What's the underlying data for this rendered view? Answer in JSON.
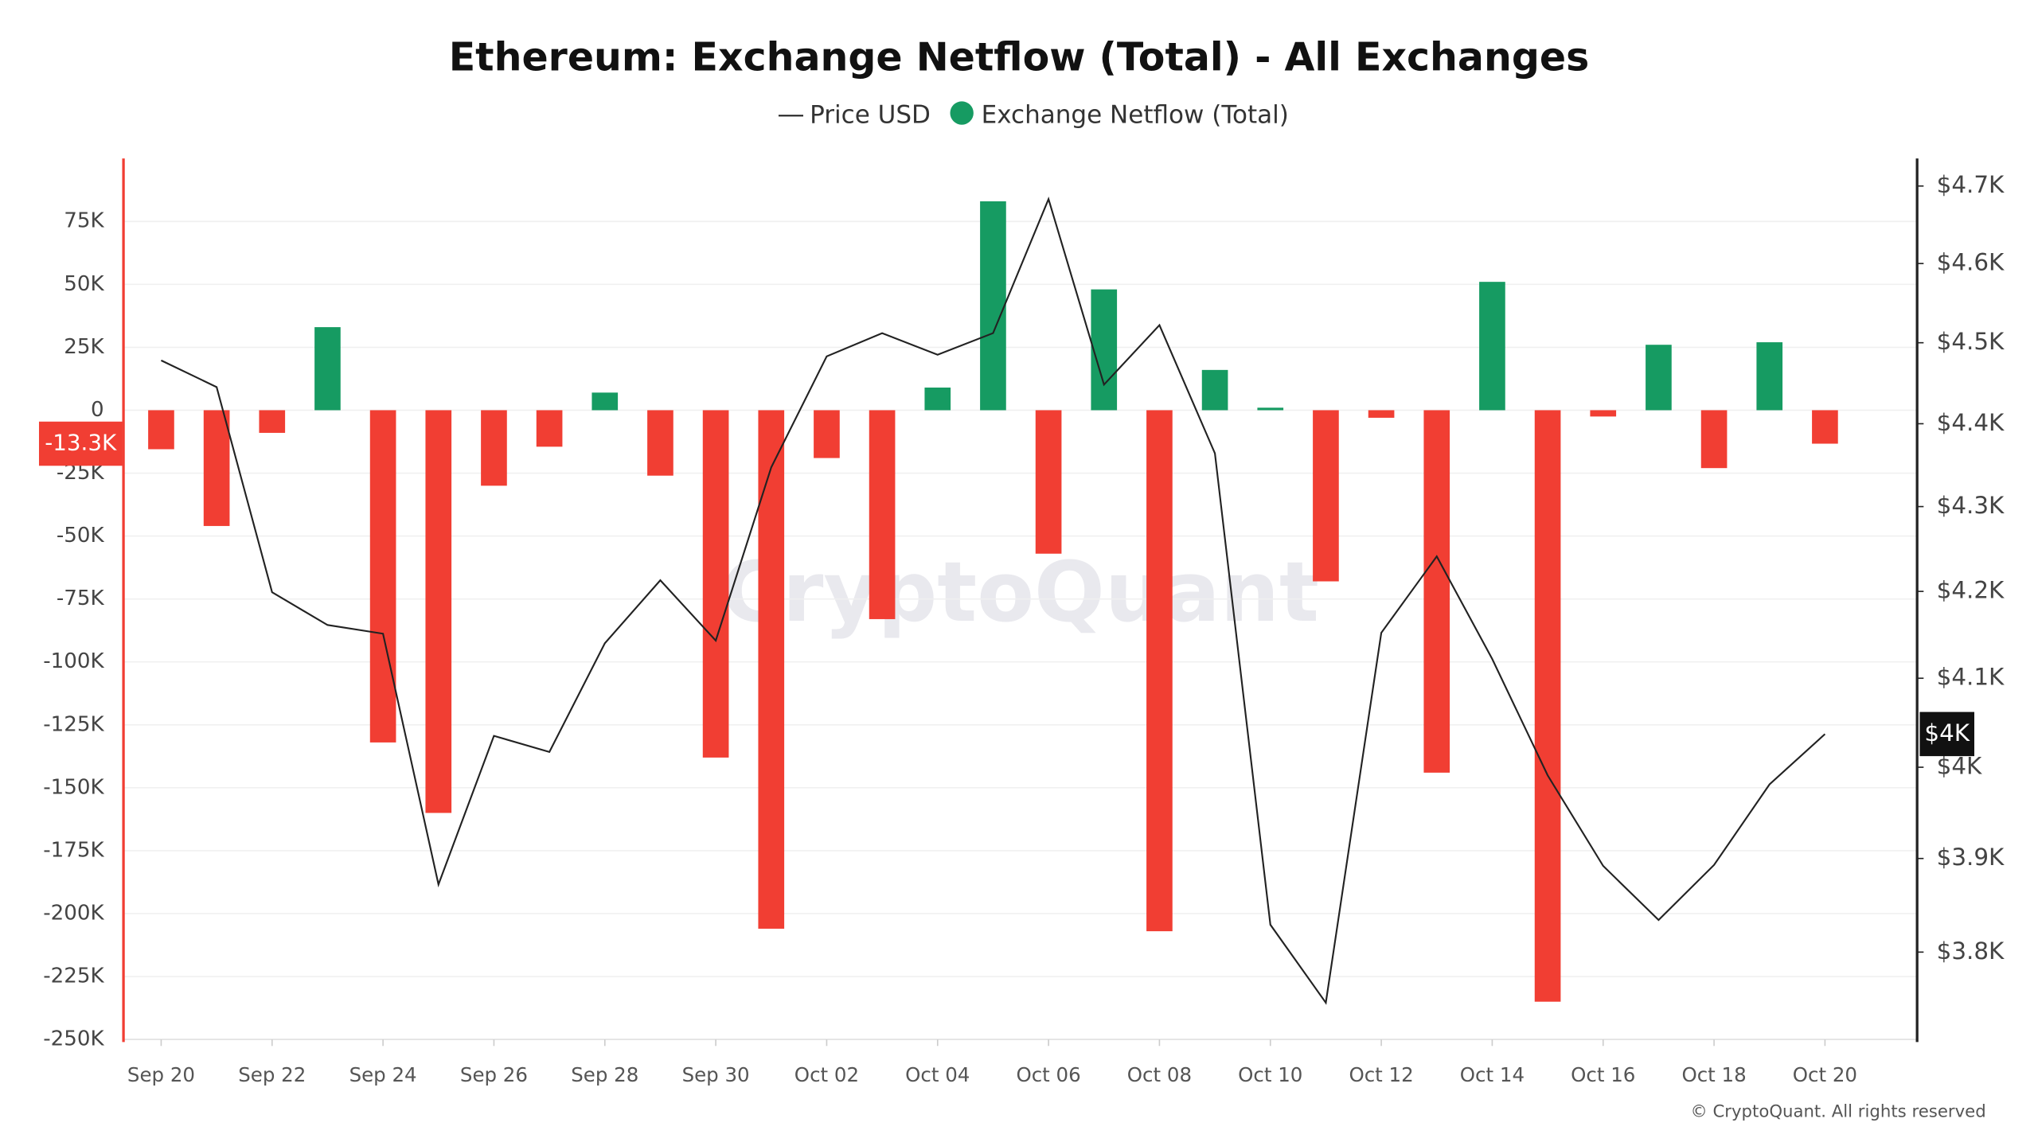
{
  "chart_data": {
    "type": "bar",
    "title": "Ethereum: Exchange Netflow (Total) - All Exchanges",
    "watermark": "CryptoQuant",
    "copyright": "© CryptoQuant. All rights reserved",
    "categories": [
      "Sep 20",
      null,
      "Sep 22",
      null,
      "Sep 24",
      null,
      "Sep 26",
      null,
      "Sep 28",
      null,
      "Sep 30",
      null,
      "Oct 02",
      null,
      "Oct 04",
      null,
      "Oct 06",
      null,
      "Oct 08",
      null,
      "Oct 10",
      null,
      "Oct 12",
      null,
      "Oct 14",
      null,
      "Oct 16",
      null,
      "Oct 18",
      null,
      "Oct 20"
    ],
    "series": [
      {
        "name": "Price USD",
        "type": "line",
        "axis": "y2",
        "color": "#222222",
        "values": [
          4478,
          4445,
          4199,
          4161,
          4151,
          3872,
          4035,
          4017,
          4140,
          4213,
          4143,
          4347,
          4483,
          4512,
          4485,
          4512,
          4683,
          4448,
          4522,
          4364,
          3829,
          3747,
          4152,
          4241,
          4122,
          3991,
          3892,
          3834,
          3893,
          3981,
          4037
        ],
        "value_labels": [
          null,
          null,
          null,
          null,
          null,
          null,
          null,
          null,
          null,
          null,
          null,
          null,
          null,
          null,
          null,
          null,
          null,
          null,
          null,
          null,
          null,
          null,
          null,
          null,
          null,
          null,
          null,
          null,
          null,
          null,
          "$4K"
        ]
      },
      {
        "name": "Exchange Netflow (Total)",
        "type": "bar",
        "color": "#169b62",
        "negative_color": "#f13e33",
        "values": [
          -15500,
          -46000,
          -9000,
          33000,
          -132000,
          -160000,
          -30000,
          -14500,
          7000,
          -26000,
          -138000,
          -206000,
          -19000,
          -83000,
          9000,
          83000,
          -57000,
          48000,
          -207000,
          16000,
          1000,
          -68000,
          -3000,
          -144000,
          51000,
          -235000,
          -2500,
          26000,
          -23000,
          27000,
          -13300
        ],
        "value_labels": [
          null,
          null,
          null,
          null,
          null,
          null,
          null,
          null,
          null,
          null,
          null,
          null,
          null,
          null,
          null,
          null,
          null,
          null,
          null,
          null,
          null,
          null,
          null,
          null,
          null,
          null,
          null,
          null,
          null,
          null,
          "-13.3K"
        ]
      }
    ],
    "ylim": [
      -250000,
      100000
    ],
    "yticks": [
      {
        "value": 75000,
        "label": "75K"
      },
      {
        "value": 50000,
        "label": "50K"
      },
      {
        "value": 25000,
        "label": "25K"
      },
      0,
      {
        "value": -25000,
        "label": "-25K"
      },
      {
        "value": -50000,
        "label": "-50K"
      },
      {
        "value": -75000,
        "label": "-75K"
      },
      {
        "value": -100000,
        "label": "-100K"
      },
      {
        "value": -125000,
        "label": "-125K"
      },
      {
        "value": -150000,
        "label": "-150K"
      },
      {
        "value": -175000,
        "label": "-175K"
      },
      {
        "value": -200000,
        "label": "-200K"
      },
      {
        "value": -225000,
        "label": "-225K"
      },
      {
        "value": -250000,
        "label": "-250K"
      }
    ],
    "y2lim": [
      3709,
      4736
    ],
    "y2log": true,
    "y2ticks": [
      {
        "value": 4700,
        "label": "$4.7K"
      },
      {
        "value": 4600,
        "label": "$4.6K"
      },
      {
        "value": 4500,
        "label": "$4.5K"
      },
      {
        "value": 4400,
        "label": "$4.4K"
      },
      {
        "value": 4300,
        "label": "$4.3K"
      },
      {
        "value": 4200,
        "label": "$4.2K"
      },
      {
        "value": 4100,
        "label": "$4.1K"
      },
      {
        "value": 4000,
        "label": "$4K"
      },
      {
        "value": 3900,
        "label": "$3.9K"
      },
      {
        "value": 3800,
        "label": "$3.8K"
      }
    ],
    "grid": true,
    "legend": "top"
  }
}
